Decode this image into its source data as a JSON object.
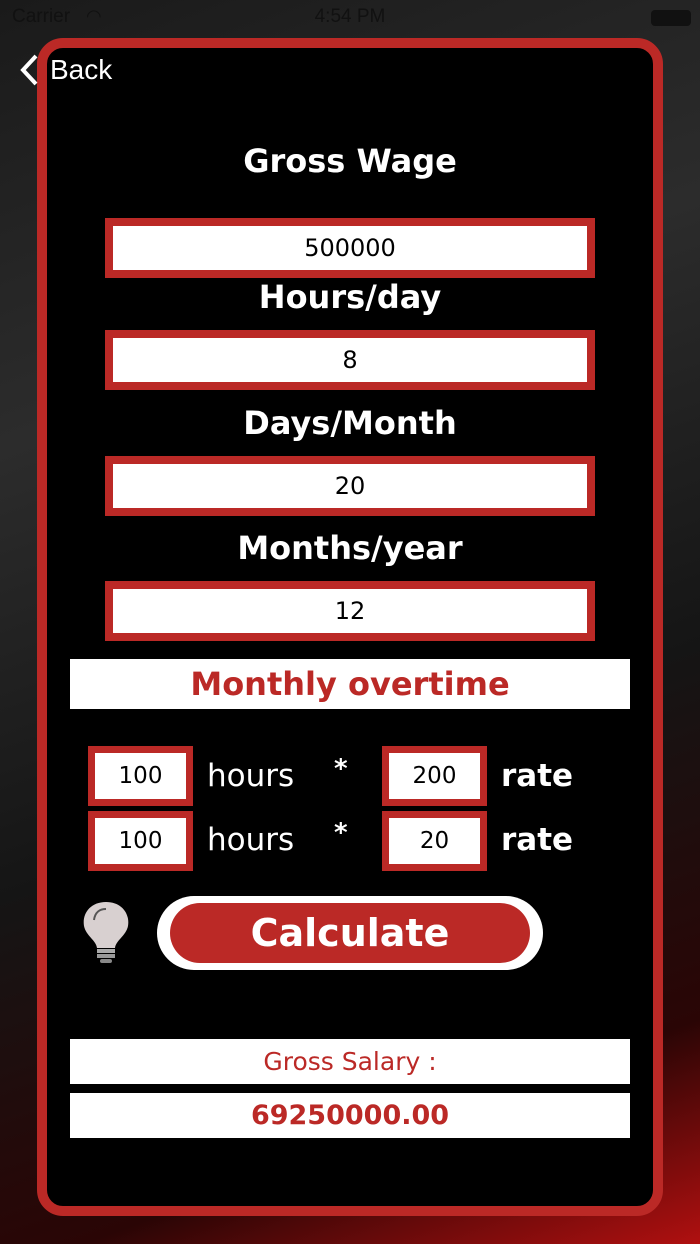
{
  "status_bar": {
    "carrier": "Carrier",
    "time": "4:54 PM"
  },
  "nav": {
    "back_label": "Back"
  },
  "form": {
    "gross_wage": {
      "label": "Gross Wage",
      "value": "500000"
    },
    "hours_day": {
      "label": "Hours/day",
      "value": "8"
    },
    "days_month": {
      "label": "Days/Month",
      "value": "20"
    },
    "months_year": {
      "label": "Months/year",
      "value": "12"
    }
  },
  "overtime": {
    "title": "Monthly overtime",
    "rows": [
      {
        "hours": "100",
        "hours_label": "hours",
        "times": "*",
        "rate": "200",
        "rate_label": "rate"
      },
      {
        "hours": "100",
        "hours_label": "hours",
        "times": "*",
        "rate": "20",
        "rate_label": "rate"
      }
    ]
  },
  "calculate_label": "Calculate",
  "result": {
    "label": "Gross Salary :",
    "value": "69250000.00"
  },
  "colors": {
    "accent": "#bb2926"
  }
}
